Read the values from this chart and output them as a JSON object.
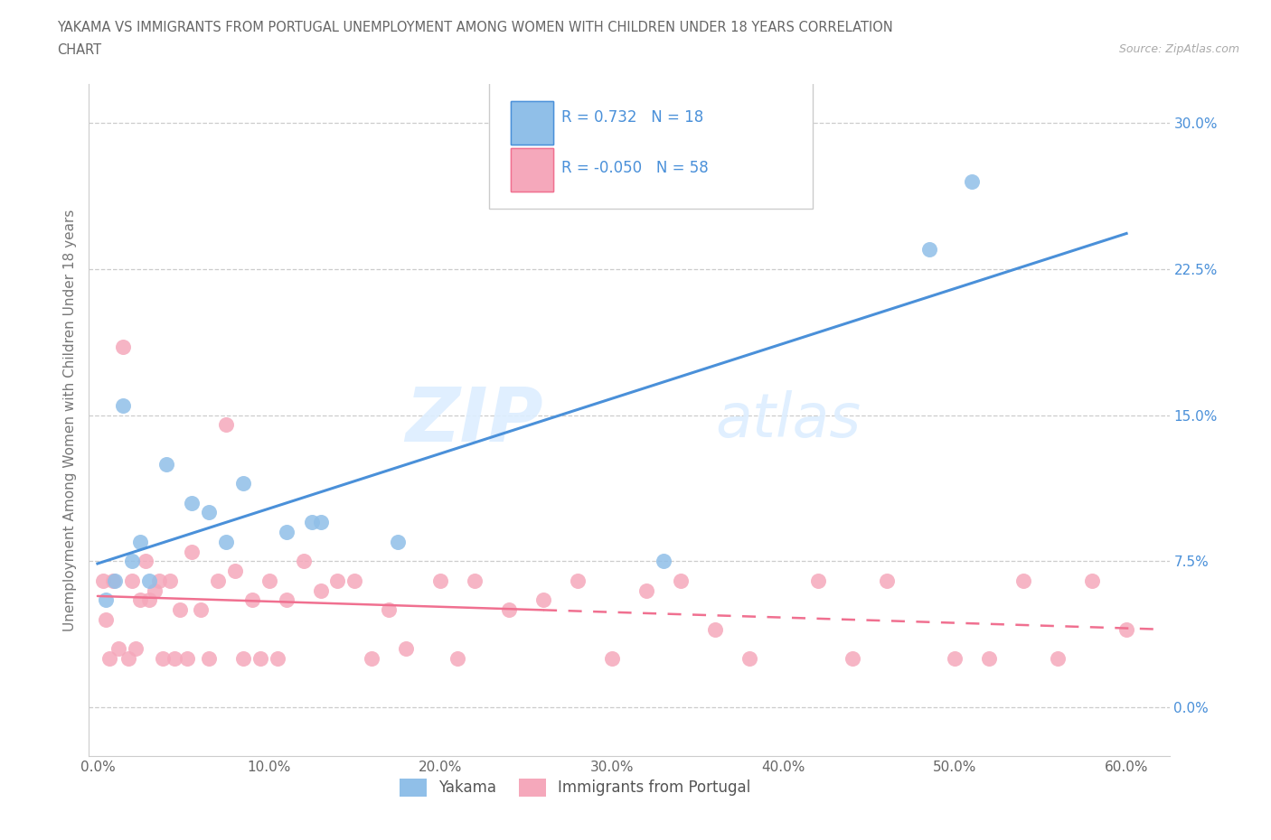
{
  "title_line1": "YAKAMA VS IMMIGRANTS FROM PORTUGAL UNEMPLOYMENT AMONG WOMEN WITH CHILDREN UNDER 18 YEARS CORRELATION",
  "title_line2": "CHART",
  "source_text": "Source: ZipAtlas.com",
  "ylabel": "Unemployment Among Women with Children Under 18 years",
  "xlabel_ticks": [
    "0.0%",
    "10.0%",
    "20.0%",
    "30.0%",
    "40.0%",
    "50.0%",
    "60.0%"
  ],
  "ylabel_ticks": [
    "0.0%",
    "7.5%",
    "15.0%",
    "22.5%",
    "30.0%"
  ],
  "xlim": [
    -0.005,
    0.625
  ],
  "ylim": [
    -0.025,
    0.32
  ],
  "watermark_zip": "ZIP",
  "watermark_atlas": "atlas",
  "yakama_x": [
    0.005,
    0.01,
    0.015,
    0.02,
    0.025,
    0.03,
    0.04,
    0.055,
    0.065,
    0.075,
    0.085,
    0.11,
    0.125,
    0.13,
    0.175,
    0.33,
    0.485,
    0.51
  ],
  "yakama_y": [
    0.055,
    0.065,
    0.155,
    0.075,
    0.085,
    0.065,
    0.125,
    0.105,
    0.1,
    0.085,
    0.115,
    0.09,
    0.095,
    0.095,
    0.085,
    0.075,
    0.235,
    0.27
  ],
  "portugal_x": [
    0.003,
    0.005,
    0.007,
    0.009,
    0.012,
    0.015,
    0.018,
    0.02,
    0.022,
    0.025,
    0.028,
    0.03,
    0.033,
    0.036,
    0.038,
    0.042,
    0.045,
    0.048,
    0.052,
    0.055,
    0.06,
    0.065,
    0.07,
    0.075,
    0.08,
    0.085,
    0.09,
    0.095,
    0.1,
    0.105,
    0.11,
    0.12,
    0.13,
    0.14,
    0.15,
    0.16,
    0.17,
    0.18,
    0.2,
    0.21,
    0.22,
    0.24,
    0.26,
    0.28,
    0.3,
    0.32,
    0.34,
    0.36,
    0.38,
    0.42,
    0.44,
    0.46,
    0.5,
    0.52,
    0.54,
    0.56,
    0.58,
    0.6
  ],
  "portugal_y": [
    0.065,
    0.045,
    0.025,
    0.065,
    0.03,
    0.185,
    0.025,
    0.065,
    0.03,
    0.055,
    0.075,
    0.055,
    0.06,
    0.065,
    0.025,
    0.065,
    0.025,
    0.05,
    0.025,
    0.08,
    0.05,
    0.025,
    0.065,
    0.145,
    0.07,
    0.025,
    0.055,
    0.025,
    0.065,
    0.025,
    0.055,
    0.075,
    0.06,
    0.065,
    0.065,
    0.025,
    0.05,
    0.03,
    0.065,
    0.025,
    0.065,
    0.05,
    0.055,
    0.065,
    0.025,
    0.06,
    0.065,
    0.04,
    0.025,
    0.065,
    0.025,
    0.065,
    0.025,
    0.025,
    0.065,
    0.025,
    0.065,
    0.04
  ],
  "yakama_color": "#90bfe8",
  "portugal_color": "#f5a8bb",
  "yakama_line_color": "#4a90d9",
  "portugal_line_color": "#f07090",
  "R_yakama": 0.732,
  "N_yakama": 18,
  "R_portugal": -0.05,
  "N_portugal": 58,
  "legend_label_1": "Yakama",
  "legend_label_2": "Immigrants from Portugal",
  "background_color": "#ffffff",
  "grid_color": "#cccccc"
}
